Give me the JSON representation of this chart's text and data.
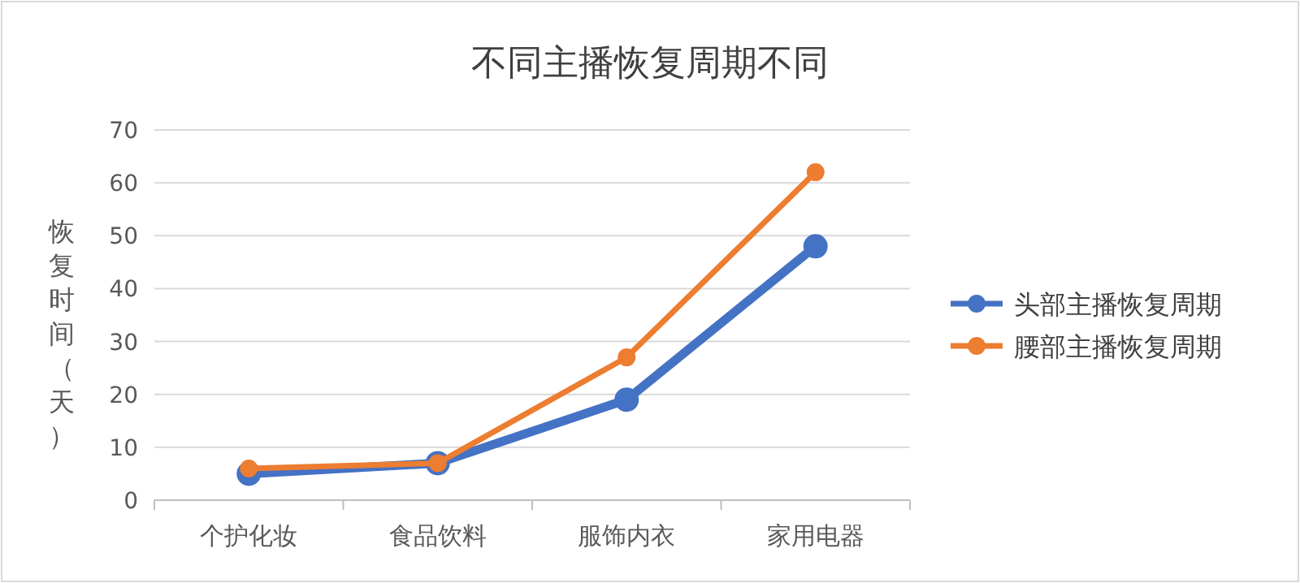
{
  "chart_data": {
    "type": "line",
    "title": "不同主播恢复周期不同",
    "ylabel": "恢复时间（天）",
    "categories": [
      "个护化妆",
      "食品饮料",
      "服饰内衣",
      "家用电器"
    ],
    "series": [
      {
        "name": "头部主播恢复周期",
        "color": "#4472c4",
        "values": [
          5,
          7,
          19,
          48
        ]
      },
      {
        "name": "腰部主播恢复周期",
        "color": "#ed7d31",
        "values": [
          6,
          7,
          27,
          62
        ]
      }
    ],
    "ylim": [
      0,
      70
    ],
    "yticks": [
      0,
      10,
      20,
      30,
      40,
      50,
      60,
      70
    ],
    "grid": "y",
    "legend": "right",
    "marker": "circle"
  }
}
